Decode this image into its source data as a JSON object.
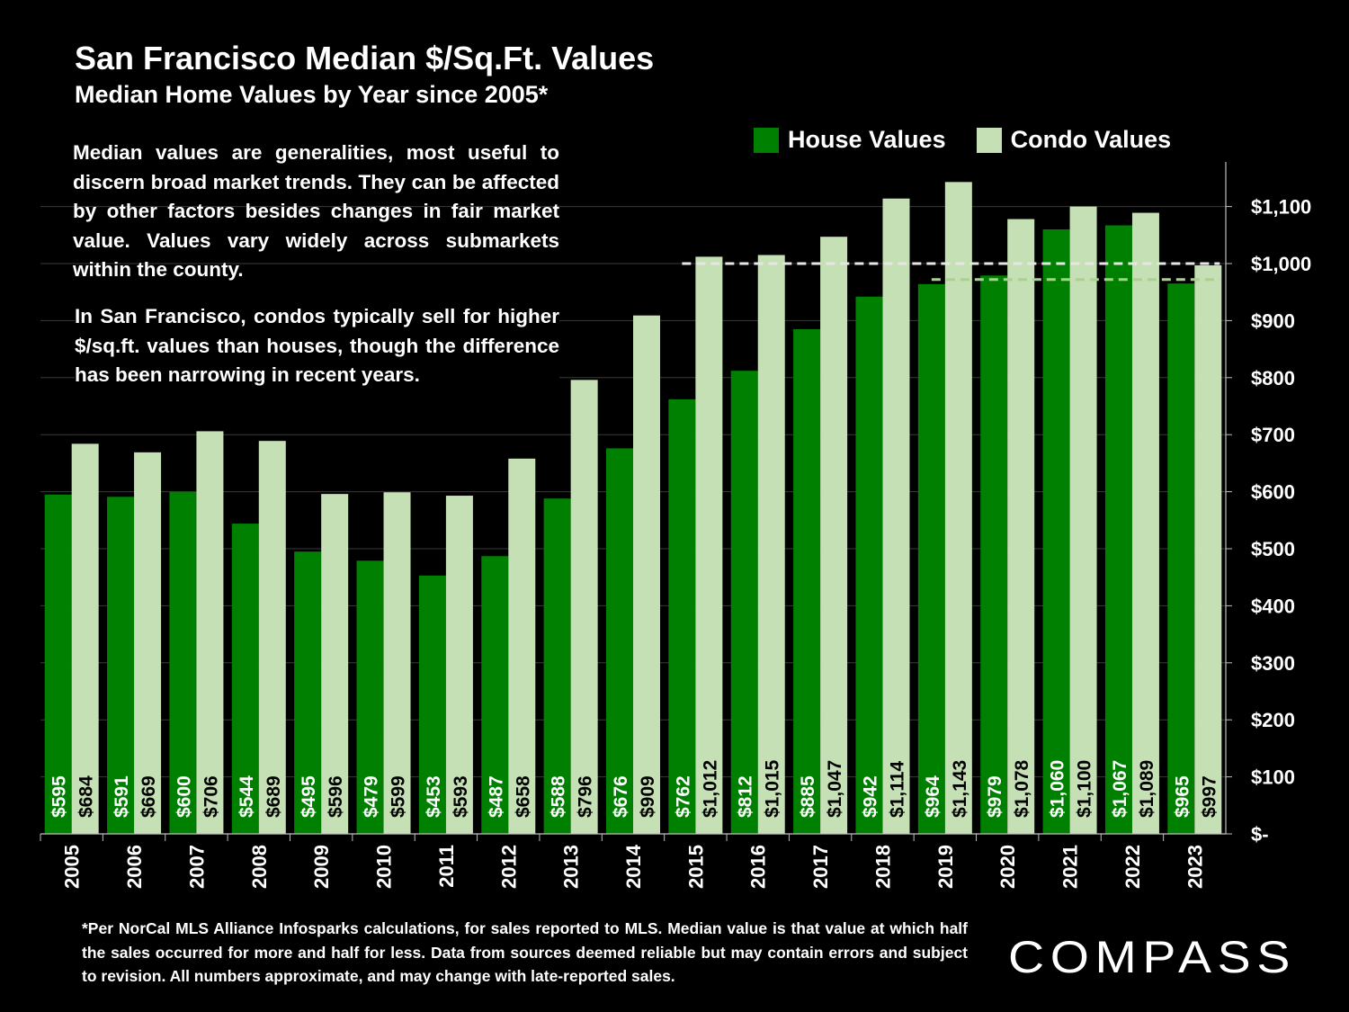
{
  "header": {
    "title": "San Francisco Median $/Sq.Ft. Values",
    "subtitle": "Median Home Values by Year since 2005*"
  },
  "legend": {
    "house_label": "House Values",
    "condo_label": "Condo Values"
  },
  "notes": {
    "para1": "Median values are generalities, most useful to discern broad market trends. They can be affected by other factors besides changes in fair market value. Values vary widely across submarkets within the county.",
    "para2": "In San Francisco, condos typically sell for higher $/sq.ft. values than houses, though the difference has been narrowing in recent years."
  },
  "footnote": "*Per NorCal MLS Alliance Infosparks calculations, for sales reported to MLS. Median value is that value at which half the sales occurred for more and half for less. Data from sources deemed reliable but may contain errors and subject to revision. All numbers approximate, and may change with late-reported sales.",
  "brand": {
    "logo_text": "COMPASS"
  },
  "colors": {
    "background": "#000000",
    "house": "#008000",
    "condo": "#c5e0b4",
    "gridline": "#3a3a3a",
    "text": "#ffffff"
  },
  "chart_data": {
    "type": "bar",
    "categories": [
      "2005",
      "2006",
      "2007",
      "2008",
      "2009",
      "2010",
      "2011",
      "2012",
      "2013",
      "2014",
      "2015",
      "2016",
      "2017",
      "2018",
      "2019",
      "2020",
      "2021",
      "2022",
      "2023"
    ],
    "series": [
      {
        "name": "House Values",
        "values": [
          595,
          591,
          600,
          544,
          495,
          479,
          453,
          487,
          588,
          676,
          762,
          812,
          885,
          942,
          964,
          979,
          1060,
          1067,
          965
        ],
        "labels": [
          "$595",
          "$591",
          "$600",
          "$544",
          "$495",
          "$479",
          "$453",
          "$487",
          "$588",
          "$676",
          "$762",
          "$812",
          "$885",
          "$942",
          "$964",
          "$979",
          "$1,060",
          "$1,067",
          "$965"
        ]
      },
      {
        "name": "Condo Values",
        "values": [
          684,
          669,
          706,
          689,
          596,
          599,
          593,
          658,
          796,
          909,
          1012,
          1015,
          1047,
          1114,
          1143,
          1078,
          1100,
          1089,
          997
        ],
        "labels": [
          "$684",
          "$669",
          "$706",
          "$689",
          "$596",
          "$599",
          "$593",
          "$658",
          "$796",
          "$909",
          "$1,012",
          "$1,015",
          "$1,047",
          "$1,114",
          "$1,143",
          "$1,078",
          "$1,100",
          "$1,089",
          "$997"
        ]
      }
    ],
    "ylim": [
      0,
      1180
    ],
    "yticks": [
      0,
      100,
      200,
      300,
      400,
      500,
      600,
      700,
      800,
      900,
      1000,
      1100
    ],
    "ytick_labels": [
      "$-",
      "$100",
      "$200",
      "$300",
      "$400",
      "$500",
      "$600",
      "$700",
      "$800",
      "$900",
      "$1,000",
      "$1,100"
    ],
    "y_axis_side": "right",
    "grid": true,
    "legend_position": "top-right",
    "reference_lines": [
      {
        "series": "Condo Values",
        "value": 1000,
        "from": "2015",
        "to": "2023",
        "style": "dashed",
        "color": "#e6e6e6"
      },
      {
        "series": "House Values",
        "value": 972,
        "from": "2019",
        "to": "2023",
        "style": "dashed",
        "color": "#a9d18e"
      }
    ]
  }
}
